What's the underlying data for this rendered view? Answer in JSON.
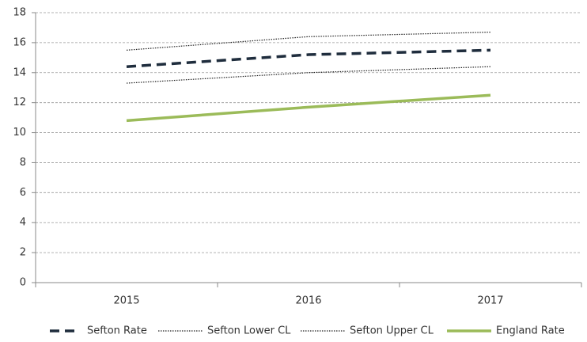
{
  "chart_data": {
    "type": "line",
    "categories": [
      "2015",
      "2016",
      "2017"
    ],
    "series": [
      {
        "name": "Sefton Rate",
        "color": "#1f2d3d",
        "values": [
          14.4,
          15.2,
          15.5
        ]
      },
      {
        "name": "Sefton Lower CL",
        "color": "#222222",
        "values": [
          13.3,
          14.0,
          14.4
        ]
      },
      {
        "name": "Sefton Upper CL",
        "color": "#222222",
        "values": [
          15.5,
          16.4,
          16.7
        ]
      },
      {
        "name": "England Rate",
        "color": "#9bbb59",
        "values": [
          10.8,
          11.7,
          12.5
        ]
      }
    ],
    "ylim": [
      0,
      18
    ],
    "yticks": [
      0,
      2,
      4,
      6,
      8,
      10,
      12,
      14,
      16,
      18
    ],
    "grid": true,
    "legend": "bottom"
  }
}
